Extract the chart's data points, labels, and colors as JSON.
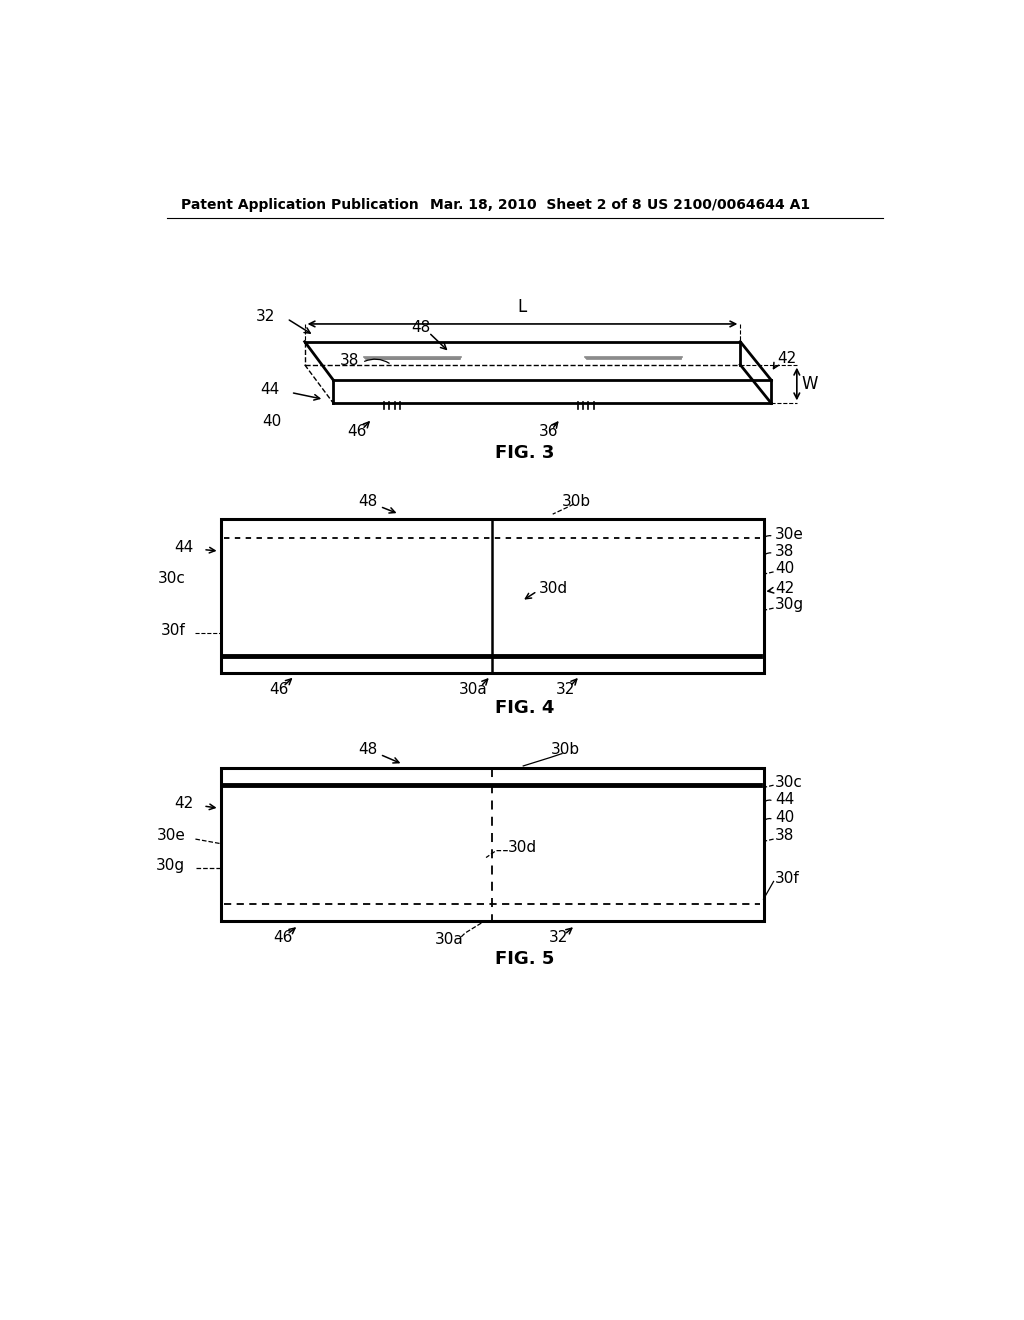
{
  "bg_color": "#ffffff",
  "header_left": "Patent Application Publication",
  "header_mid": "Mar. 18, 2010  Sheet 2 of 8",
  "header_right": "US 2100/0064644 A1",
  "fig3_caption": "FIG. 3",
  "fig4_caption": "FIG. 4",
  "fig5_caption": "FIG. 5"
}
